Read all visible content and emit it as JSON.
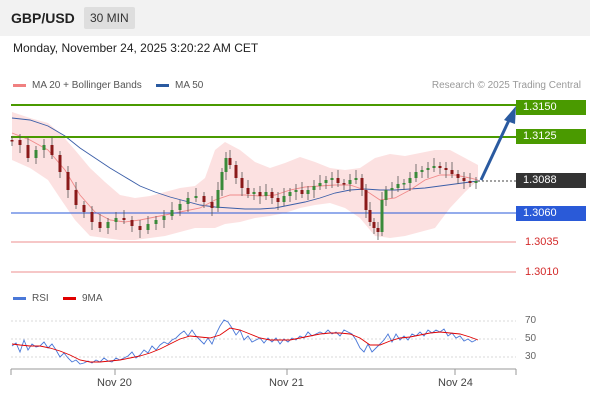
{
  "header": {
    "pair": "GBP/USD",
    "timeframe": "30 MIN"
  },
  "datetime": "Monday, November 24, 2025 3:20:22 AM CET",
  "legend": {
    "ma20": {
      "label": "MA 20 + Bollinger Bands",
      "color": "#f08080"
    },
    "ma50": {
      "label": "MA 50",
      "color": "#2a5aa0"
    }
  },
  "credit": "Research © 2025 Trading Central",
  "levels": {
    "r2": {
      "label": "1.3150",
      "color": "#4a9a00"
    },
    "r1": {
      "label": "1.3125",
      "color": "#4a9a00"
    },
    "last": {
      "label": "1.3088",
      "color": "#333333"
    },
    "pivot": {
      "label": "1.3060",
      "color": "#2a5ad8"
    },
    "s1": {
      "label": "1.3035",
      "color": "#d42a2a"
    },
    "s2": {
      "label": "1.3010",
      "color": "#d42a2a"
    }
  },
  "rsi": {
    "rsi_label": "RSI",
    "rsi_color": "#4a78d8",
    "ma_label": "9MA",
    "ma_color": "#e00000",
    "ticks": [
      "70",
      "50",
      "30"
    ]
  },
  "xaxis": {
    "labels": [
      "Nov 20",
      "Nov 21",
      "Nov 24"
    ]
  },
  "icons": {
    "arrow": "up-right-arrow-icon"
  }
}
